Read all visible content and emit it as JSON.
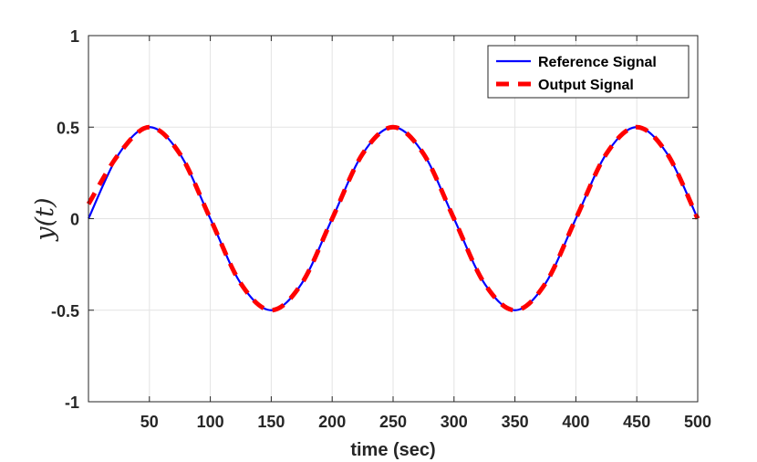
{
  "chart_data": {
    "type": "line",
    "title": "",
    "xlabel": "time (sec)",
    "ylabel": "y(t)",
    "xlim": [
      0,
      500
    ],
    "ylim": [
      -1,
      1
    ],
    "x_ticks": [
      50,
      100,
      150,
      200,
      250,
      300,
      350,
      400,
      450,
      500
    ],
    "x_tick_labels": [
      "50",
      "100",
      "150",
      "200",
      "250",
      "300",
      "350",
      "400",
      "450",
      "500"
    ],
    "y_ticks": [
      -1,
      -0.5,
      0,
      0.5,
      1
    ],
    "y_tick_labels": [
      "-1",
      "-0.5",
      "0",
      "0.5",
      "1"
    ],
    "grid": true,
    "legend_position": "top-right",
    "x": [
      0,
      25,
      50,
      75,
      100,
      125,
      150,
      175,
      200,
      225,
      250,
      275,
      300,
      325,
      350,
      375,
      400,
      425,
      450,
      475,
      500
    ],
    "series": [
      {
        "name": "Reference Signal",
        "color": "#0000ff",
        "style": "solid",
        "values": [
          0,
          0.354,
          0.5,
          0.354,
          0,
          -0.354,
          -0.5,
          -0.354,
          0,
          0.354,
          0.5,
          0.354,
          0,
          -0.354,
          -0.5,
          -0.354,
          0,
          0.354,
          0.5,
          0.354,
          0
        ]
      },
      {
        "name": "Output Signal",
        "color": "#ff0000",
        "style": "dashed",
        "values": [
          0.08,
          0.354,
          0.5,
          0.354,
          0,
          -0.354,
          -0.5,
          -0.354,
          0,
          0.354,
          0.5,
          0.354,
          0,
          -0.354,
          -0.5,
          -0.354,
          0,
          0.354,
          0.5,
          0.354,
          0
        ]
      }
    ]
  }
}
